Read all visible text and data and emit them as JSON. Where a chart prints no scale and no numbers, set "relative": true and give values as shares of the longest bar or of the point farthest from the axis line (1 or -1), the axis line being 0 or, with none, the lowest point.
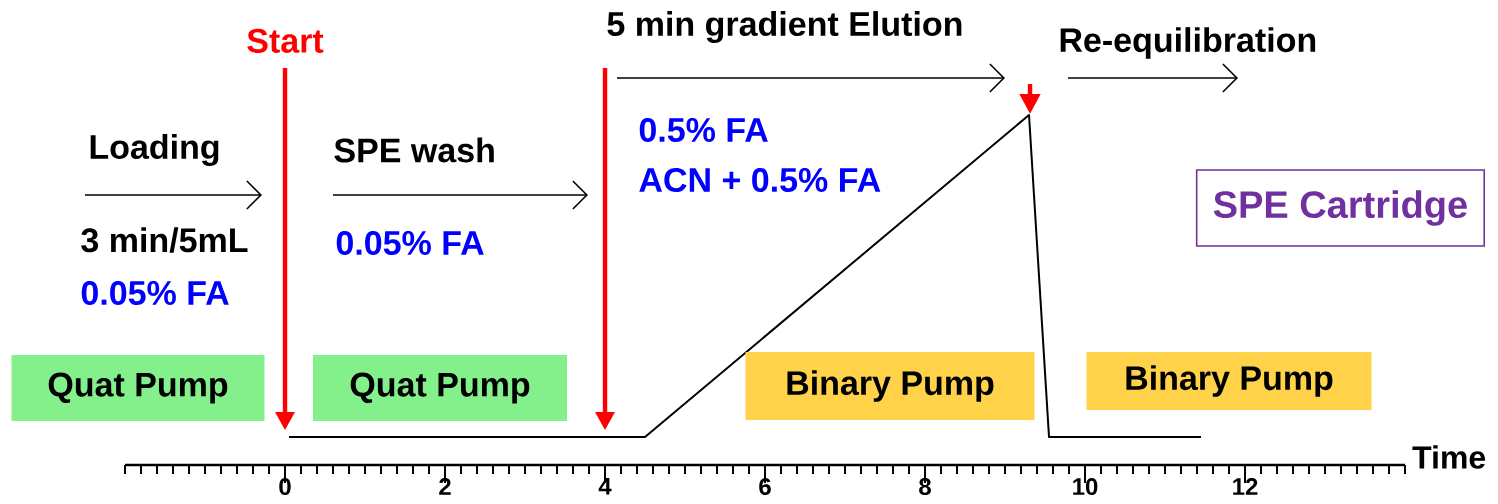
{
  "chart_data": {
    "type": "line",
    "relative": true,
    "xlabel": "Time",
    "xlim": [
      -2,
      14
    ],
    "xticks": [
      0,
      2,
      4,
      6,
      8,
      10,
      12
    ],
    "x": [
      0.05,
      4.5,
      9.3,
      9.55,
      11.45
    ],
    "series": [
      {
        "color": "#000000",
        "values": [
          0.08,
          0.08,
          1,
          0.08,
          0.08
        ]
      }
    ],
    "ref_lines": [
      {
        "axis": "x",
        "value": 0,
        "label": "Start",
        "color": "#ff0000"
      },
      {
        "axis": "x",
        "value": 4,
        "color": "#ff0000"
      }
    ],
    "annotations": [
      "Loading",
      "3 min/5mL",
      "0.05% FA",
      "SPE wash",
      "0.05% FA",
      "5 min gradient Elution",
      "0.5% FA",
      "ACN + 0.5% FA",
      "Re-equilibration",
      "SPE Cartridge",
      "Quat Pump",
      "Quat Pump",
      "Binary Pump",
      "Binary Pump"
    ]
  }
}
